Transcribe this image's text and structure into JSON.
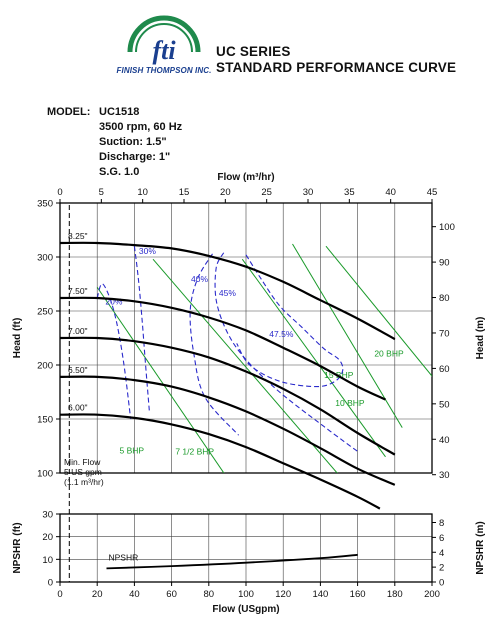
{
  "header": {
    "brand_name": "FINISH THOMPSON INC.",
    "logo_text": "fti",
    "title_line1": "UC SERIES",
    "title_line2": "STANDARD PERFORMANCE CURVE",
    "brand_color": "#1a3f8f",
    "logo_accent_color": "#1f8a4c"
  },
  "model": {
    "label": "MODEL:",
    "value": "UC1518",
    "speed": "3500 rpm, 60 Hz",
    "suction": "Suction: 1.5\"",
    "discharge": "Discharge: 1\"",
    "sg": "S.G. 1.0"
  },
  "chart_data": {
    "type": "line",
    "grid": true,
    "x_bottom": {
      "label": "Flow (USgpm)",
      "range": [
        0,
        200
      ],
      "ticks": [
        0,
        20,
        40,
        60,
        80,
        100,
        120,
        140,
        160,
        180,
        200
      ]
    },
    "x_top": {
      "label": "Flow (m³/hr)",
      "range": [
        0,
        45
      ],
      "ticks": [
        0,
        5,
        10,
        15,
        20,
        25,
        30,
        35,
        40,
        45
      ]
    },
    "y_left_head": {
      "label": "Head (ft)",
      "range": [
        0,
        350
      ],
      "ticks": [
        100,
        150,
        200,
        250,
        300,
        350
      ]
    },
    "y_right_head": {
      "label": "Head (m)",
      "range": [
        0,
        106.7
      ],
      "ticks": [
        30,
        40,
        50,
        60,
        70,
        80,
        90,
        100
      ]
    },
    "y_left_npshr": {
      "label": "NPSHR (ft)",
      "range": [
        0,
        30
      ],
      "ticks": [
        0,
        10,
        20,
        30
      ]
    },
    "y_right_npshr": {
      "label": "NPSHR (m)",
      "range": [
        0,
        9.14
      ],
      "ticks": [
        0,
        2,
        4,
        6,
        8
      ]
    },
    "impeller_curves": [
      {
        "name": "8.25\"",
        "x": [
          0,
          20,
          40,
          60,
          80,
          100,
          120,
          140,
          160,
          180
        ],
        "y": [
          313,
          313,
          311,
          308,
          301,
          291,
          277,
          260,
          243,
          224
        ]
      },
      {
        "name": "7.50\"",
        "x": [
          0,
          20,
          40,
          60,
          80,
          100,
          120,
          140,
          160,
          175
        ],
        "y": [
          262,
          262,
          259,
          253,
          244,
          232,
          216,
          199,
          180,
          168
        ]
      },
      {
        "name": "7.00\"",
        "x": [
          0,
          20,
          40,
          60,
          80,
          100,
          120,
          140,
          160,
          180
        ],
        "y": [
          225,
          225,
          222,
          216,
          207,
          194,
          178,
          159,
          137,
          117
        ]
      },
      {
        "name": "6.50\"",
        "x": [
          0,
          20,
          40,
          60,
          80,
          100,
          120,
          140,
          160,
          180
        ],
        "y": [
          189,
          189,
          186,
          180,
          170,
          157,
          141,
          123,
          104,
          89
        ]
      },
      {
        "name": "6.00\"",
        "x": [
          0,
          20,
          40,
          60,
          80,
          100,
          120,
          140,
          160,
          172
        ],
        "y": [
          154,
          154,
          151,
          145,
          136,
          124,
          109,
          94,
          78,
          67
        ]
      }
    ],
    "efficiency_curves": [
      {
        "name": "20%",
        "x": [
          20,
          23,
          29,
          34,
          38
        ],
        "y": [
          262,
          275,
          250,
          205,
          150
        ]
      },
      {
        "name": "30%",
        "x": [
          40,
          42,
          44,
          46,
          48
        ],
        "y": [
          310,
          282,
          245,
          200,
          158
        ]
      },
      {
        "name": "40%",
        "x": [
          82,
          74,
          70,
          72,
          78,
          96
        ],
        "y": [
          303,
          280,
          250,
          210,
          170,
          135
        ]
      },
      {
        "name": "45%",
        "x": [
          88,
          84,
          84,
          90,
          100,
          118,
          142,
          160
        ],
        "y": [
          304,
          290,
          260,
          230,
          205,
          175,
          143,
          120
        ]
      },
      {
        "name": "47.5%",
        "x": [
          100,
          108,
          118,
          130,
          142,
          150,
          152,
          148,
          138,
          118,
          102,
          95
        ],
        "y": [
          302,
          280,
          255,
          235,
          215,
          205,
          195,
          185,
          180,
          185,
          200,
          220
        ]
      }
    ],
    "bhp_lines": [
      {
        "name": "5 BHP",
        "x": [
          20,
          98
        ],
        "y": [
          272,
          75
        ]
      },
      {
        "name": "7 1/2 BHP",
        "x": [
          50,
          166
        ],
        "y": [
          298,
          66
        ]
      },
      {
        "name": "10 BHP",
        "x": [
          98,
          175
        ],
        "y": [
          298,
          115
        ]
      },
      {
        "name": "15 BHP",
        "x": [
          125,
          184
        ],
        "y": [
          312,
          142
        ]
      },
      {
        "name": "20 BHP",
        "x": [
          143,
          207
        ],
        "y": [
          310,
          175
        ]
      }
    ],
    "min_flow": {
      "x": 5,
      "label_lines": [
        "Min. Flow",
        "5 US gpm",
        "(1.1 m³/hr)"
      ]
    },
    "npshr_curve": {
      "name": "NPSHR",
      "x": [
        25,
        60,
        100,
        140,
        160
      ],
      "y": [
        6,
        7,
        8.5,
        10.5,
        12
      ]
    },
    "colors": {
      "head": "#000000",
      "efficiency": "#2a2acb",
      "bhp": "#1a9a2a",
      "grid": "#444444"
    }
  }
}
